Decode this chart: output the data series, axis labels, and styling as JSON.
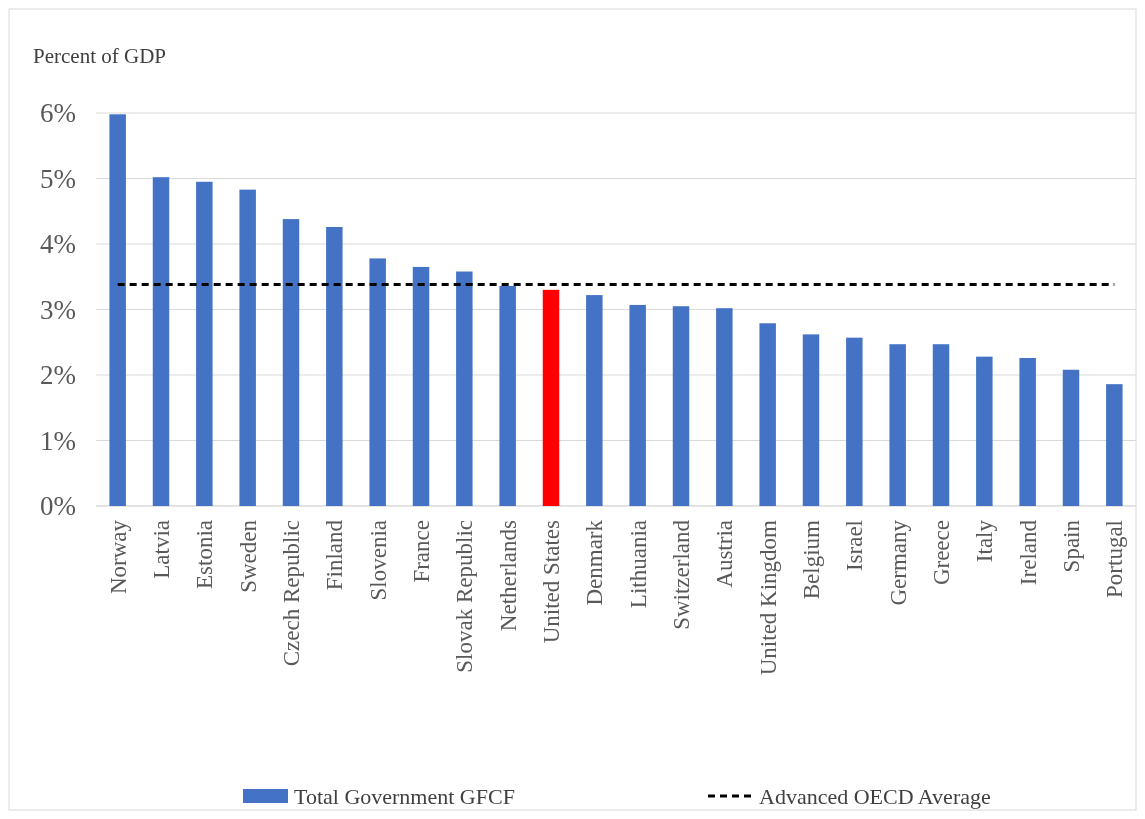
{
  "chart_data": {
    "type": "bar",
    "ylabel": "Percent of GDP",
    "categories": [
      "Norway",
      "Latvia",
      "Estonia",
      "Sweden",
      "Czech Republic",
      "Finland",
      "Slovenia",
      "France",
      "Slovak Republic",
      "Netherlands",
      "United States",
      "Denmark",
      "Lithuania",
      "Switzerland",
      "Austria",
      "United Kingdom",
      "Belgium",
      "Israel",
      "Germany",
      "Greece",
      "Italy",
      "Ireland",
      "Spain",
      "Portugal"
    ],
    "series": [
      {
        "name": "Total Government GFCF",
        "color": "#4472c4",
        "values": [
          5.98,
          5.02,
          4.95,
          4.83,
          4.38,
          4.26,
          3.78,
          3.65,
          3.58,
          3.36,
          3.3,
          3.22,
          3.07,
          3.05,
          3.02,
          2.79,
          2.62,
          2.57,
          2.47,
          2.47,
          2.28,
          2.26,
          2.08,
          1.86
        ],
        "colors": [
          "#4472c4",
          "#4472c4",
          "#4472c4",
          "#4472c4",
          "#4472c4",
          "#4472c4",
          "#4472c4",
          "#4472c4",
          "#4472c4",
          "#4472c4",
          "#ff0000",
          "#4472c4",
          "#4472c4",
          "#4472c4",
          "#4472c4",
          "#4472c4",
          "#4472c4",
          "#4472c4",
          "#4472c4",
          "#4472c4",
          "#4472c4",
          "#4472c4",
          "#4472c4",
          "#4472c4"
        ]
      }
    ],
    "ylim": [
      0,
      6
    ],
    "yticks": [
      {
        "value": 0,
        "label": "0%"
      },
      {
        "value": 1,
        "label": "1%"
      },
      {
        "value": 2,
        "label": "2%"
      },
      {
        "value": 3,
        "label": "3%"
      },
      {
        "value": 4,
        "label": "4%"
      },
      {
        "value": 5,
        "label": "5%"
      },
      {
        "value": 6,
        "label": "6%"
      }
    ],
    "ref_lines": [
      {
        "axis": "y",
        "value": 3.38,
        "label": "Advanced OECD Average",
        "color": "#000000",
        "line_style": "dashed"
      }
    ],
    "grid": "y",
    "legend": "bottom"
  }
}
